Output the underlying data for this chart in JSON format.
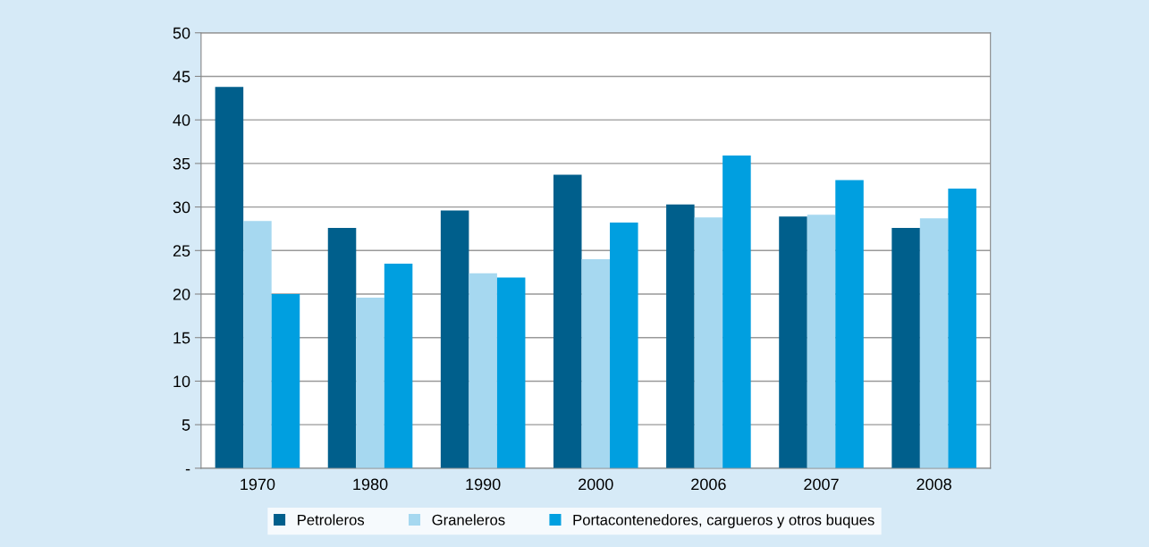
{
  "chart_data": {
    "type": "bar",
    "categories": [
      "1970",
      "1980",
      "1990",
      "2000",
      "2006",
      "2007",
      "2008"
    ],
    "series": [
      {
        "name": "Petroleros",
        "color": "#005f8c",
        "values": [
          43.8,
          27.6,
          29.6,
          33.7,
          30.3,
          28.9,
          27.6
        ]
      },
      {
        "name": "Graneleros",
        "color": "#a6d8f0",
        "values": [
          28.4,
          19.6,
          22.4,
          24.0,
          28.8,
          29.1,
          28.7
        ]
      },
      {
        "name": "Portacontenedores, cargueros y otros buques",
        "color": "#009fe0",
        "values": [
          20.0,
          23.5,
          21.9,
          28.2,
          35.9,
          33.1,
          32.1
        ]
      }
    ],
    "ylim": [
      0,
      50
    ],
    "yticks": [
      {
        "value": 0,
        "label": "-"
      },
      5,
      10,
      15,
      20,
      25,
      30,
      35,
      40,
      45,
      50
    ],
    "grid": "y",
    "legend": "bottom"
  }
}
